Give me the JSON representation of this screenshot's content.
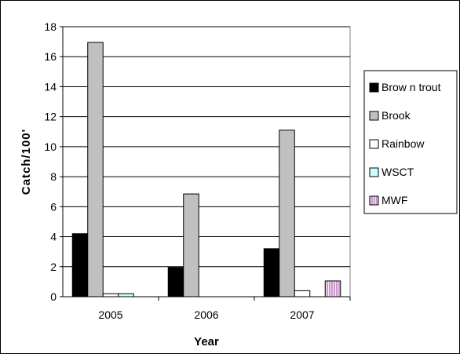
{
  "chart_data": {
    "type": "bar",
    "title": "",
    "xlabel": "Year",
    "ylabel": "Catch/100'",
    "categories": [
      "2005",
      "2006",
      "2007"
    ],
    "ylim": [
      0,
      18
    ],
    "yticks": [
      0,
      2,
      4,
      6,
      8,
      10,
      12,
      14,
      16,
      18
    ],
    "grid": "horizontal",
    "legend_position": "right",
    "series": [
      {
        "name": "Brow n trout",
        "color": "#000000",
        "values": [
          4.2,
          1.95,
          3.2
        ]
      },
      {
        "name": "Brook",
        "color": "#c0c0c0",
        "values": [
          16.95,
          6.85,
          11.1
        ]
      },
      {
        "name": "Rainbow",
        "color": "#ffffff",
        "values": [
          0.2,
          0,
          0.4
        ]
      },
      {
        "name": "WSCT",
        "color": "#ccffff",
        "values": [
          0.2,
          0,
          0
        ]
      },
      {
        "name": "MWF",
        "color": "#cc99cc",
        "pattern": "vertical-stripes",
        "values": [
          0,
          0,
          1.05
        ]
      }
    ]
  }
}
